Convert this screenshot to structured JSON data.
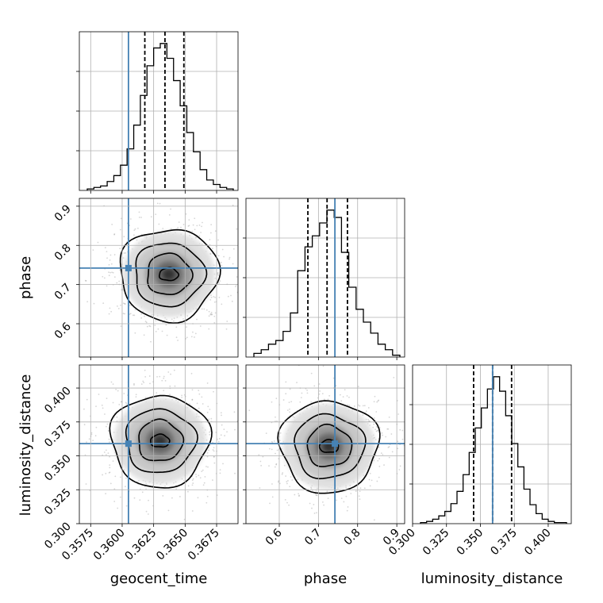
{
  "chart_data": {
    "type": "corner",
    "parameters": [
      {
        "key": "geocent_time",
        "label": "geocent_time",
        "range": [
          0.3566,
          0.3692
        ],
        "ticks": [
          0.3575,
          0.36,
          0.3625,
          0.365,
          0.3675
        ],
        "tick_labels": [
          "0.3575",
          "0.3600",
          "0.3625",
          "0.3650",
          "0.3675"
        ],
        "truth": 0.3605,
        "quantiles": [
          0.3618,
          0.3634,
          0.3649
        ],
        "hist_bins": 22,
        "hist_counts": [
          1,
          2,
          3,
          6,
          10,
          17,
          28,
          44,
          64,
          84,
          96,
          99,
          89,
          74,
          57,
          39,
          26,
          14,
          7,
          4,
          2,
          1
        ]
      },
      {
        "key": "phase",
        "label": "phase",
        "range": [
          0.515,
          0.92
        ],
        "ticks": [
          0.6,
          0.7,
          0.8,
          0.9
        ],
        "tick_labels": [
          "0.6",
          "0.7",
          "0.8",
          "0.9"
        ],
        "truth": 0.742,
        "quantiles": [
          0.673,
          0.722,
          0.774
        ],
        "hist_bins": 20,
        "hist_counts": [
          2,
          4,
          7,
          9,
          14,
          24,
          47,
          60,
          66,
          73,
          80,
          76,
          57,
          38,
          26,
          19,
          13,
          7,
          4,
          1
        ]
      },
      {
        "key": "luminosity_distance",
        "label": "luminosity_distance",
        "range": [
          0.3,
          0.417
        ],
        "ticks": [
          0.3,
          0.325,
          0.35,
          0.375,
          0.4
        ],
        "tick_labels": [
          "0.300",
          "0.325",
          "0.350",
          "0.375",
          "0.400"
        ],
        "truth": 0.359,
        "quantiles": [
          0.345,
          0.359,
          0.373
        ],
        "hist_bins": 24,
        "hist_counts": [
          1,
          2,
          4,
          7,
          11,
          18,
          29,
          44,
          64,
          86,
          104,
          121,
          132,
          119,
          97,
          72,
          51,
          31,
          17,
          9,
          4,
          2,
          1,
          1
        ]
      }
    ],
    "pair_centers": [
      {
        "x": "geocent_time",
        "y": "phase",
        "mode": [
          0.3637,
          0.726
        ]
      },
      {
        "x": "geocent_time",
        "y": "luminosity_distance",
        "mode": [
          0.363,
          0.361
        ]
      },
      {
        "x": "phase",
        "y": "luminosity_distance",
        "mode": [
          0.727,
          0.357
        ]
      }
    ],
    "truth_color": "#4682b4",
    "contour_color": "#000000",
    "quantile_style": "dashed",
    "grid": true
  }
}
